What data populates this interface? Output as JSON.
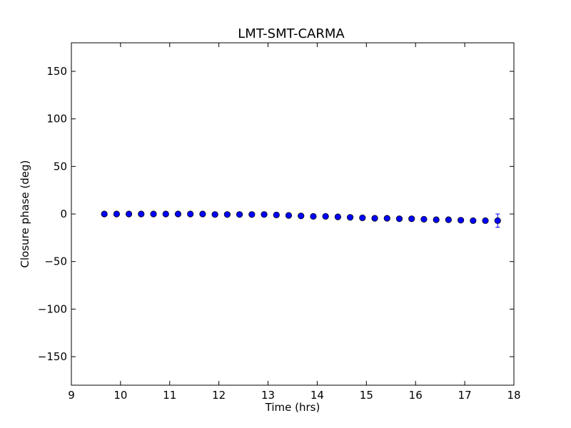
{
  "chart_data": {
    "type": "scatter",
    "title": "LMT-SMT-CARMA",
    "xlabel": "Time (hrs)",
    "ylabel": "Closure phase (deg)",
    "xlim": [
      9,
      18
    ],
    "ylim": [
      -180,
      180
    ],
    "xticks": [
      9,
      10,
      11,
      12,
      13,
      14,
      15,
      16,
      17,
      18
    ],
    "xtick_labels": [
      "9",
      "10",
      "11",
      "12",
      "13",
      "14",
      "15",
      "16",
      "17",
      "18"
    ],
    "yticks": [
      -150,
      -100,
      -50,
      0,
      50,
      100,
      150
    ],
    "ytick_labels": [
      "−150",
      "−100",
      "−50",
      "0",
      "50",
      "100",
      "150"
    ],
    "grid": false,
    "marker_color": "#0000ff",
    "series": [
      {
        "x": [
          9.67,
          9.92,
          10.17,
          10.42,
          10.67,
          10.92,
          11.17,
          11.42,
          11.67,
          11.92,
          12.17,
          12.42,
          12.67,
          12.92,
          13.17,
          13.42,
          13.67,
          13.92,
          14.17,
          14.42,
          14.67,
          14.92,
          15.17,
          15.42,
          15.67,
          15.92,
          16.17,
          16.42,
          16.67,
          16.92,
          17.17,
          17.42,
          17.67
        ],
        "y": [
          0.0,
          0.0,
          0.0,
          0.0,
          0.0,
          0.0,
          0.0,
          0.0,
          0.0,
          -0.5,
          -0.5,
          -0.5,
          -0.5,
          -0.5,
          -1.0,
          -1.5,
          -2.0,
          -2.5,
          -2.5,
          -3.0,
          -3.5,
          -4.0,
          -4.5,
          -4.5,
          -5.0,
          -5.0,
          -5.5,
          -6.0,
          -6.0,
          -6.5,
          -7.0,
          -7.0,
          -7.0
        ],
        "yerr": [
          0,
          0,
          0,
          0,
          0,
          0,
          0,
          0,
          0,
          0,
          0,
          0,
          0,
          0,
          0,
          0,
          0,
          0,
          0,
          0,
          0,
          0,
          0,
          0,
          0,
          0,
          0,
          0,
          0,
          0,
          0,
          0,
          7
        ]
      }
    ]
  }
}
